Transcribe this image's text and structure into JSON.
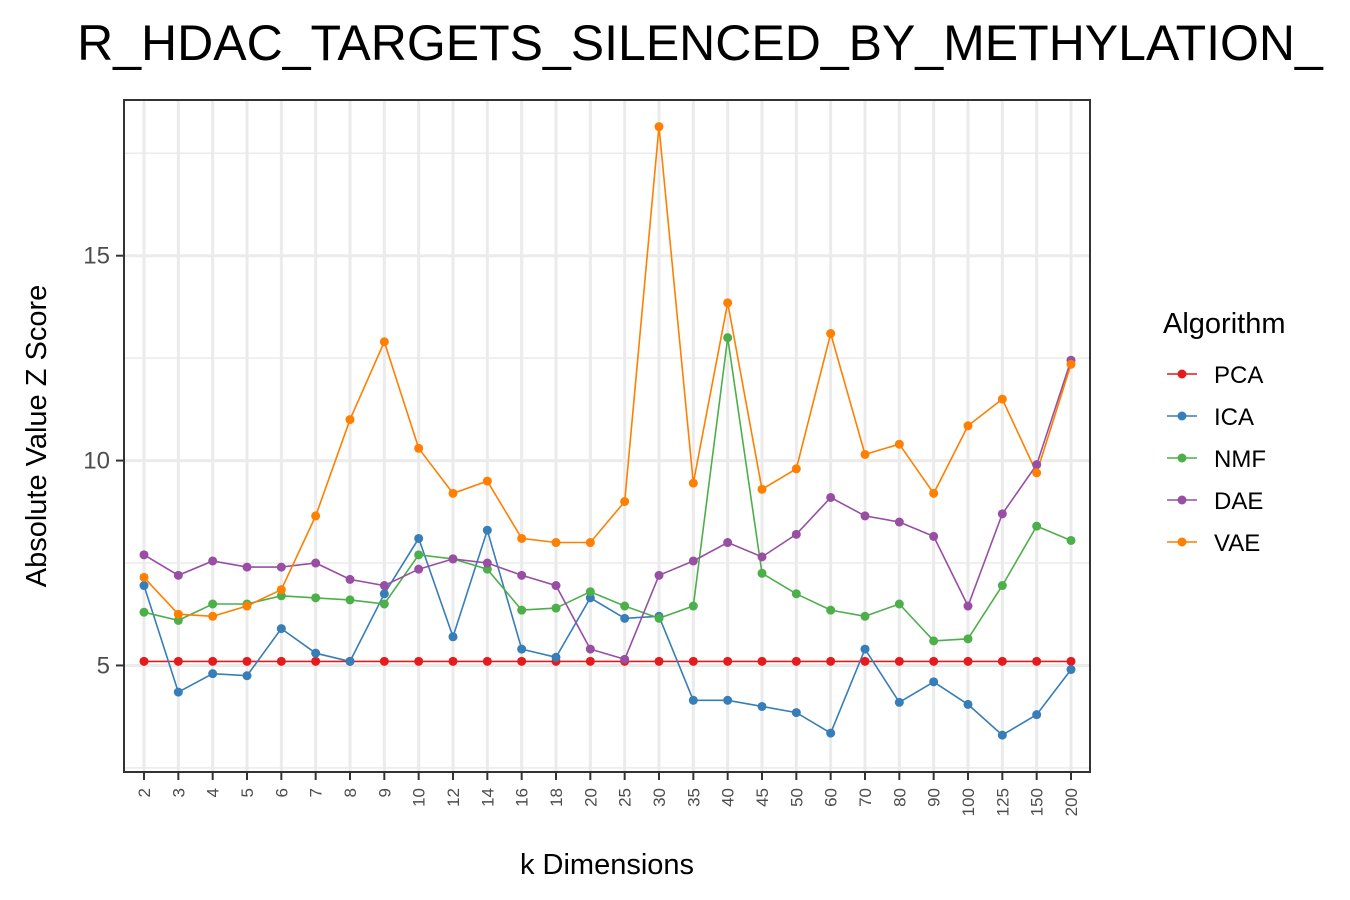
{
  "chart_data": {
    "type": "line",
    "title": "R_HDAC_TARGETS_SILENCED_BY_METHYLATION_",
    "xlabel": "k Dimensions",
    "ylabel": "Absolute Value Z Score",
    "categories": [
      "2",
      "3",
      "4",
      "5",
      "6",
      "7",
      "8",
      "9",
      "10",
      "12",
      "14",
      "16",
      "18",
      "20",
      "25",
      "30",
      "35",
      "40",
      "45",
      "50",
      "60",
      "70",
      "80",
      "90",
      "100",
      "125",
      "150",
      "200"
    ],
    "ylim": [
      2.4,
      18.8
    ],
    "yticks": [
      5,
      10,
      15
    ],
    "grid": true,
    "legend_title": "Algorithm",
    "legend_position": "right",
    "series": [
      {
        "name": "PCA",
        "color": "#e41a1c",
        "values": [
          5.1,
          5.1,
          5.1,
          5.1,
          5.1,
          5.1,
          5.1,
          5.1,
          5.1,
          5.1,
          5.1,
          5.1,
          5.1,
          5.1,
          5.1,
          5.1,
          5.1,
          5.1,
          5.1,
          5.1,
          5.1,
          5.1,
          5.1,
          5.1,
          5.1,
          5.1,
          5.1,
          5.1
        ]
      },
      {
        "name": "ICA",
        "color": "#377eb8",
        "values": [
          6.95,
          4.35,
          4.8,
          4.75,
          5.9,
          5.3,
          5.1,
          6.75,
          8.1,
          5.7,
          8.3,
          5.4,
          5.2,
          6.65,
          6.15,
          6.2,
          4.15,
          4.15,
          4.0,
          3.85,
          3.35,
          5.4,
          4.1,
          4.6,
          4.05,
          3.3,
          3.8,
          4.9
        ]
      },
      {
        "name": "NMF",
        "color": "#4daf4a",
        "values": [
          6.3,
          6.1,
          6.5,
          6.5,
          6.7,
          6.65,
          6.6,
          6.5,
          7.7,
          7.6,
          7.35,
          6.35,
          6.4,
          6.8,
          6.45,
          6.15,
          6.45,
          13.0,
          7.25,
          6.75,
          6.35,
          6.2,
          6.5,
          5.6,
          5.65,
          6.95,
          8.4,
          8.05
        ]
      },
      {
        "name": "DAE",
        "color": "#984ea3",
        "values": [
          7.7,
          7.2,
          7.55,
          7.4,
          7.4,
          7.5,
          7.1,
          6.95,
          7.35,
          7.6,
          7.5,
          7.2,
          6.95,
          5.4,
          5.15,
          7.2,
          7.55,
          8.0,
          7.65,
          8.2,
          9.1,
          8.65,
          8.5,
          8.15,
          6.45,
          8.7,
          9.9,
          12.45
        ]
      },
      {
        "name": "VAE",
        "color": "#ff7f00",
        "values": [
          7.15,
          6.25,
          6.2,
          6.45,
          6.85,
          8.65,
          11.0,
          12.9,
          10.3,
          9.2,
          9.5,
          8.1,
          8.0,
          8.0,
          9.0,
          18.15,
          9.45,
          13.85,
          9.3,
          9.8,
          13.1,
          10.15,
          10.4,
          9.2,
          10.85,
          11.5,
          9.7,
          12.35
        ]
      }
    ]
  }
}
